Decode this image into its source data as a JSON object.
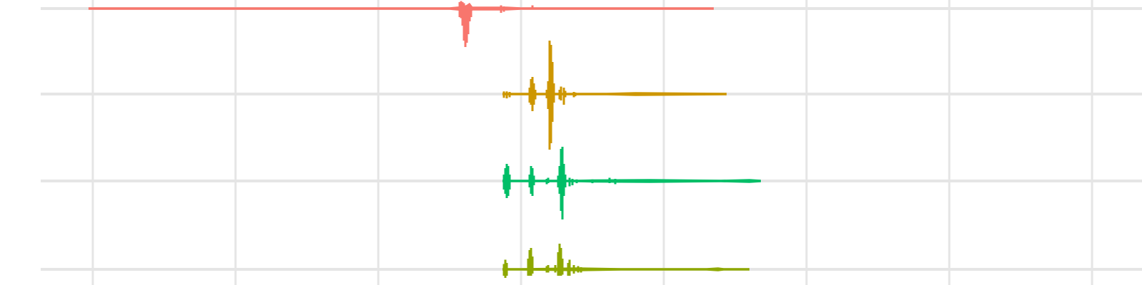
{
  "chart_data": {
    "type": "area",
    "title": "",
    "xlabel": "",
    "ylabel": "",
    "grid": true,
    "legend": "none",
    "colors": {
      "gridline": "#e5e5e5",
      "background": "#ffffff",
      "label": "#b0b0b0"
    },
    "x_gridlines": [
      0,
      1,
      2,
      3,
      4,
      5,
      6,
      7
    ],
    "series": [
      {
        "label": "",
        "color": "#F8766D",
        "baseline_extent": [
          -0.03,
          4.35
        ],
        "ridge": [
          [
            -0.03,
            0.2
          ],
          [
            2.5,
            0.2
          ],
          [
            2.6,
            0.4
          ],
          [
            2.62,
            0.6
          ],
          [
            2.64,
            0.9
          ],
          [
            2.66,
            0.3
          ],
          [
            2.9,
            0.3
          ],
          [
            3.0,
            0.2
          ],
          [
            4.35,
            0.2
          ]
        ],
        "spikes": [
          {
            "x": 2.57,
            "up": 0.6,
            "down": 0.8
          },
          {
            "x": 2.58,
            "up": 0.7,
            "down": 0.9
          },
          {
            "x": 2.59,
            "up": 0.6,
            "down": 1.6
          },
          {
            "x": 2.6,
            "up": 0.5,
            "down": 3.0
          },
          {
            "x": 2.61,
            "up": 0.3,
            "down": 3.6
          },
          {
            "x": 2.62,
            "up": 0.2,
            "down": 3.2
          },
          {
            "x": 2.63,
            "up": 0.1,
            "down": 2.4
          },
          {
            "x": 2.64,
            "up": 0.1,
            "down": 1.2
          },
          {
            "x": 2.65,
            "up": 0.1,
            "down": 0.8
          },
          {
            "x": 2.86,
            "up": 0.3,
            "down": 0.4
          },
          {
            "x": 2.88,
            "up": 0.2,
            "down": 0.3
          },
          {
            "x": 3.08,
            "up": 0.3,
            "down": 0.1
          }
        ]
      },
      {
        "label": "",
        "color": "#CD9600",
        "baseline_extent": [
          2.87,
          4.44
        ],
        "ridge": [
          [
            2.87,
            0.2
          ],
          [
            3.6,
            0.2
          ],
          [
            3.8,
            0.3
          ],
          [
            4.44,
            0.2
          ]
        ],
        "spikes": [
          {
            "x": 2.88,
            "up": 0.25,
            "down": 0.35
          },
          {
            "x": 2.9,
            "up": 0.25,
            "down": 0.4
          },
          {
            "x": 2.92,
            "up": 0.2,
            "down": 0.3
          },
          {
            "x": 3.06,
            "up": 0.6,
            "down": 0.8
          },
          {
            "x": 3.07,
            "up": 1.4,
            "down": 1.0
          },
          {
            "x": 3.08,
            "up": 1.6,
            "down": 1.6
          },
          {
            "x": 3.09,
            "up": 1.0,
            "down": 1.0
          },
          {
            "x": 3.1,
            "up": 0.4,
            "down": 0.5
          },
          {
            "x": 3.18,
            "up": 0.4,
            "down": 0.4
          },
          {
            "x": 3.19,
            "up": 1.2,
            "down": 1.4
          },
          {
            "x": 3.2,
            "up": 5.0,
            "down": 5.2
          },
          {
            "x": 3.21,
            "up": 4.6,
            "down": 4.6
          },
          {
            "x": 3.22,
            "up": 3.0,
            "down": 2.6
          },
          {
            "x": 3.23,
            "up": 1.0,
            "down": 0.8
          },
          {
            "x": 3.27,
            "up": 0.4,
            "down": 0.5
          },
          {
            "x": 3.28,
            "up": 0.7,
            "down": 0.6
          },
          {
            "x": 3.3,
            "up": 0.6,
            "down": 1.0
          },
          {
            "x": 3.31,
            "up": 0.3,
            "down": 0.3
          },
          {
            "x": 3.37,
            "up": 0.2,
            "down": 0.3
          },
          {
            "x": 3.38,
            "up": 0.15,
            "down": 0.2
          }
        ]
      },
      {
        "label": "",
        "color": "#00BE67",
        "baseline_extent": [
          2.87,
          4.68
        ],
        "ridge": [
          [
            2.87,
            0.2
          ],
          [
            3.4,
            0.2
          ],
          [
            3.5,
            0.25
          ],
          [
            3.9,
            0.3
          ],
          [
            4.4,
            0.2
          ],
          [
            4.6,
            0.3
          ],
          [
            4.68,
            0.2
          ]
        ],
        "spikes": [
          {
            "x": 2.88,
            "up": 0.6,
            "down": 0.8
          },
          {
            "x": 2.89,
            "up": 1.2,
            "down": 1.2
          },
          {
            "x": 2.9,
            "up": 1.6,
            "down": 1.6
          },
          {
            "x": 2.91,
            "up": 1.4,
            "down": 1.4
          },
          {
            "x": 2.92,
            "up": 0.6,
            "down": 0.8
          },
          {
            "x": 3.06,
            "up": 0.6,
            "down": 0.6
          },
          {
            "x": 3.07,
            "up": 1.4,
            "down": 1.2
          },
          {
            "x": 3.08,
            "up": 1.2,
            "down": 1.4
          },
          {
            "x": 3.09,
            "up": 0.5,
            "down": 0.4
          },
          {
            "x": 3.18,
            "up": 0.2,
            "down": 0.3
          },
          {
            "x": 3.19,
            "up": 0.3,
            "down": 0.2
          },
          {
            "x": 3.26,
            "up": 0.5,
            "down": 0.6
          },
          {
            "x": 3.27,
            "up": 1.4,
            "down": 1.2
          },
          {
            "x": 3.28,
            "up": 3.0,
            "down": 2.8
          },
          {
            "x": 3.29,
            "up": 3.2,
            "down": 3.6
          },
          {
            "x": 3.3,
            "up": 1.6,
            "down": 1.4
          },
          {
            "x": 3.31,
            "up": 0.6,
            "down": 0.6
          },
          {
            "x": 3.34,
            "up": 0.3,
            "down": 0.5
          },
          {
            "x": 3.36,
            "up": 0.2,
            "down": 0.4
          },
          {
            "x": 3.39,
            "up": 0.15,
            "down": 0.2
          },
          {
            "x": 3.5,
            "up": 0.15,
            "down": 0.2
          },
          {
            "x": 3.62,
            "up": 0.3,
            "down": 0.2
          },
          {
            "x": 3.66,
            "up": 0.2,
            "down": 0.3
          }
        ]
      },
      {
        "label": "",
        "color": "#8EA800",
        "baseline_extent": [
          2.87,
          4.6
        ],
        "ridge": [
          [
            2.87,
            0.2
          ],
          [
            3.0,
            0.2
          ],
          [
            3.4,
            0.3
          ],
          [
            3.7,
            0.2
          ],
          [
            4.3,
            0.2
          ],
          [
            4.38,
            0.3
          ],
          [
            4.42,
            0.2
          ],
          [
            4.6,
            0.2
          ]
        ],
        "spikes": [
          {
            "x": 2.88,
            "up": 0.5,
            "down": 0.6
          },
          {
            "x": 2.89,
            "up": 0.9,
            "down": 0.8
          },
          {
            "x": 2.9,
            "up": 0.6,
            "down": 0.6
          },
          {
            "x": 3.05,
            "up": 1.0,
            "down": 0.6
          },
          {
            "x": 3.06,
            "up": 1.8,
            "down": 0.6
          },
          {
            "x": 3.07,
            "up": 2.0,
            "down": 0.6
          },
          {
            "x": 3.08,
            "up": 1.2,
            "down": 0.4
          },
          {
            "x": 3.18,
            "up": 0.3,
            "down": 0.3
          },
          {
            "x": 3.19,
            "up": 0.4,
            "down": 0.3
          },
          {
            "x": 3.24,
            "up": 0.4,
            "down": 0.3
          },
          {
            "x": 3.26,
            "up": 1.6,
            "down": 0.6
          },
          {
            "x": 3.27,
            "up": 2.4,
            "down": 0.6
          },
          {
            "x": 3.28,
            "up": 2.0,
            "down": 0.6
          },
          {
            "x": 3.29,
            "up": 1.0,
            "down": 0.5
          },
          {
            "x": 3.33,
            "up": 0.6,
            "down": 0.6
          },
          {
            "x": 3.34,
            "up": 0.9,
            "down": 0.6
          },
          {
            "x": 3.37,
            "up": 0.4,
            "down": 0.4
          },
          {
            "x": 3.4,
            "up": 0.3,
            "down": 0.3
          },
          {
            "x": 3.42,
            "up": 0.2,
            "down": 0.3
          }
        ]
      }
    ]
  }
}
